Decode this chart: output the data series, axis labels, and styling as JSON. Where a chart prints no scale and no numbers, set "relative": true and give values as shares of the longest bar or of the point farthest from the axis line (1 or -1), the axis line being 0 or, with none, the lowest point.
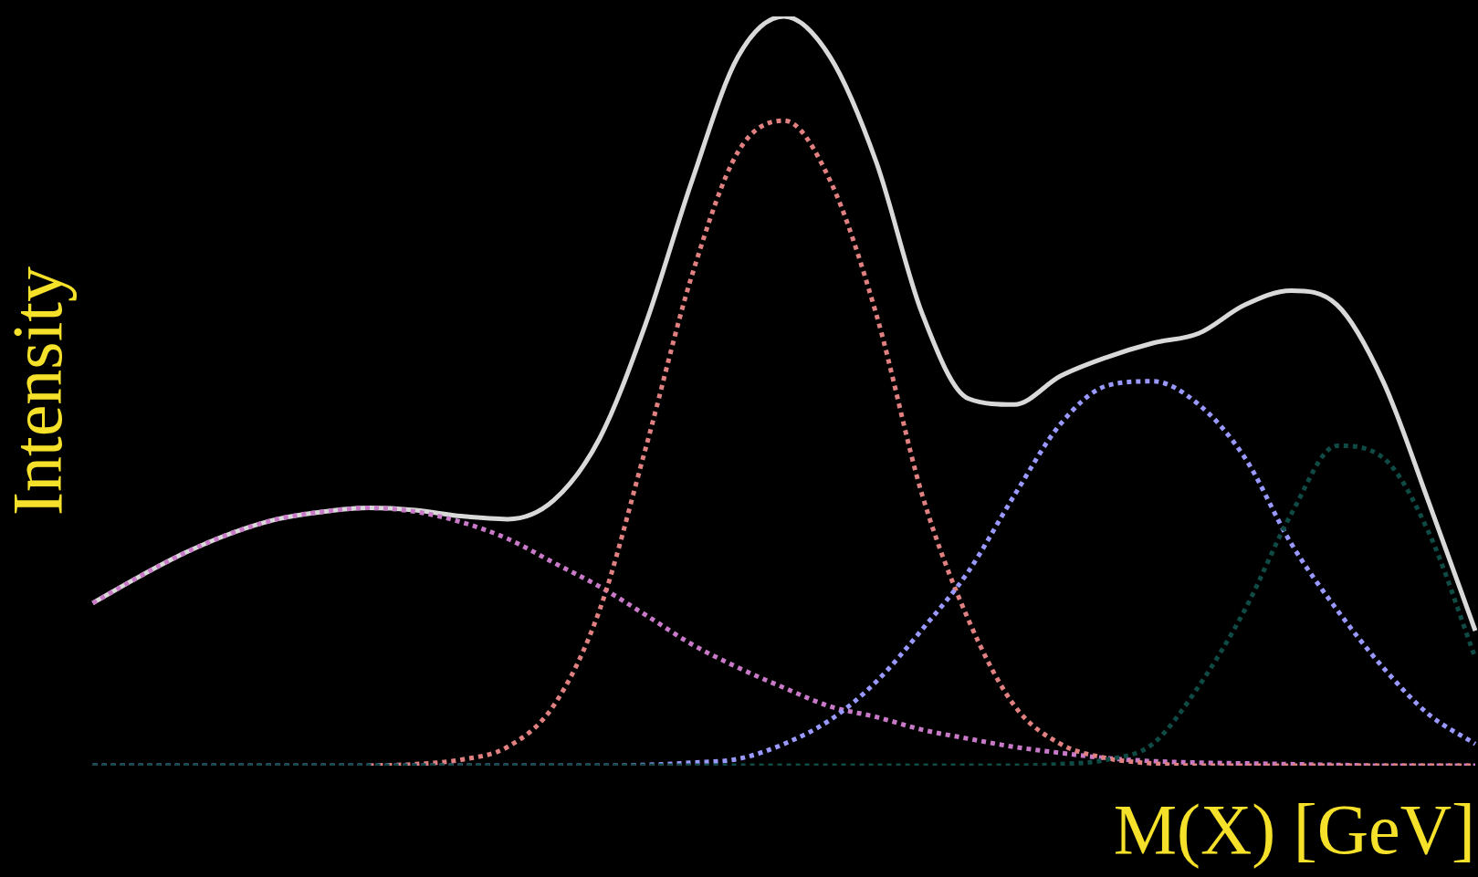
{
  "chart_data": {
    "type": "line",
    "relative": true,
    "xlabel": "M(X) [GeV]",
    "ylabel": "Intensity",
    "marker": "none",
    "legend": false,
    "categories": [
      null,
      null,
      null,
      null,
      null,
      null,
      null,
      null,
      null,
      null,
      null,
      null,
      null,
      null,
      null,
      null,
      null,
      null,
      null,
      null,
      null,
      null,
      null,
      null,
      null,
      null,
      null,
      null,
      null,
      null,
      null
    ],
    "series": [
      {
        "color": "#d9d9d9",
        "line_style": "solid",
        "values": [
          0.217,
          0.252,
          0.284,
          0.31,
          0.329,
          0.339,
          0.344,
          0.341,
          0.333,
          0.329,
          0.354,
          0.437,
          0.59,
          0.78,
          0.946,
          1,
          0.946,
          0.806,
          0.603,
          0.49,
          0.482,
          0.52,
          0.545,
          0.564,
          0.577,
          0.615,
          0.634,
          0.615,
          0.513,
          0.35,
          0.18
        ]
      },
      {
        "color": "#c879c8",
        "line_style": "dotted",
        "values": [
          0.217,
          0.252,
          0.284,
          0.31,
          0.329,
          0.339,
          0.344,
          0.339,
          0.325,
          0.303,
          0.271,
          0.239,
          0.201,
          0.162,
          0.131,
          0.104,
          0.079,
          0.065,
          0.048,
          0.036,
          0.025,
          0.017,
          0.01,
          0.006,
          0.004,
          0.003,
          0.002,
          0.001,
          0,
          0,
          0
        ]
      },
      {
        "color": "#e08080",
        "line_style": "dotted",
        "values": [
          null,
          null,
          null,
          null,
          null,
          null,
          0,
          0.002,
          0.008,
          0.025,
          0.08,
          0.208,
          0.424,
          0.654,
          0.819,
          0.861,
          0.781,
          0.603,
          0.361,
          0.195,
          0.08,
          0.029,
          0.01,
          0.003,
          0,
          0,
          0,
          0,
          0,
          0,
          0
        ]
      },
      {
        "color": "#9999ff",
        "line_style": "dotted",
        "values": [
          0,
          0,
          0,
          0,
          0,
          0,
          0,
          0,
          0,
          0,
          0,
          0,
          0.001,
          0.004,
          0.009,
          0.029,
          0.061,
          0.112,
          0.182,
          0.259,
          0.361,
          0.456,
          0.507,
          0.513,
          0.482,
          0.411,
          0.297,
          0.208,
          0.131,
          0.068,
          0.029
        ]
      },
      {
        "color": "#0f4a45",
        "line_style": "dotted",
        "values": [
          0,
          0,
          0,
          0,
          0,
          0,
          0,
          0,
          0,
          0,
          0,
          0,
          0,
          0,
          0,
          0,
          0,
          0,
          0,
          0,
          0,
          0.002,
          0.008,
          0.029,
          0.106,
          0.208,
          0.335,
          0.427,
          0.411,
          0.31,
          0.144
        ]
      }
    ]
  }
}
